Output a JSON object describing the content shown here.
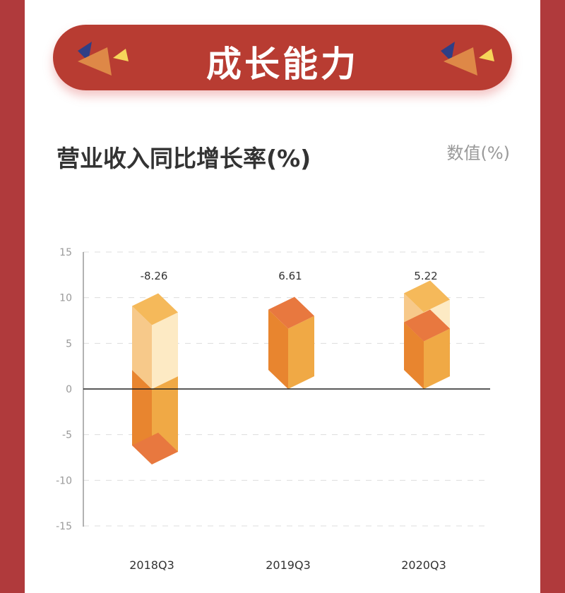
{
  "banner": {
    "title": "成长能力"
  },
  "chart_title": "营业收入同比增长率(%)",
  "unit_label": "数值(%)",
  "colors": {
    "frame": "#b03a3c",
    "banner": "#b83c32",
    "bar_left": "#e8852f",
    "bar_right": "#f0a945",
    "bar_cap": "#e8783f",
    "ghost_left": "#f7c98a",
    "ghost_right": "#fdeac4",
    "ghost_cap": "#f5b95a"
  },
  "chart_data": {
    "type": "bar",
    "style": "3d-isometric",
    "categories": [
      "2018Q3",
      "2019Q3",
      "2020Q3"
    ],
    "values": [
      -8.26,
      6.61,
      5.22
    ],
    "data_labels": [
      "-8.26",
      "6.61",
      "5.22"
    ],
    "background_bar_values": [
      7,
      null,
      8.4
    ],
    "ylim": [
      -15,
      15
    ],
    "yticks": [
      "15",
      "10",
      "5",
      "0",
      "-5",
      "-10",
      "-15"
    ],
    "grid": true
  }
}
